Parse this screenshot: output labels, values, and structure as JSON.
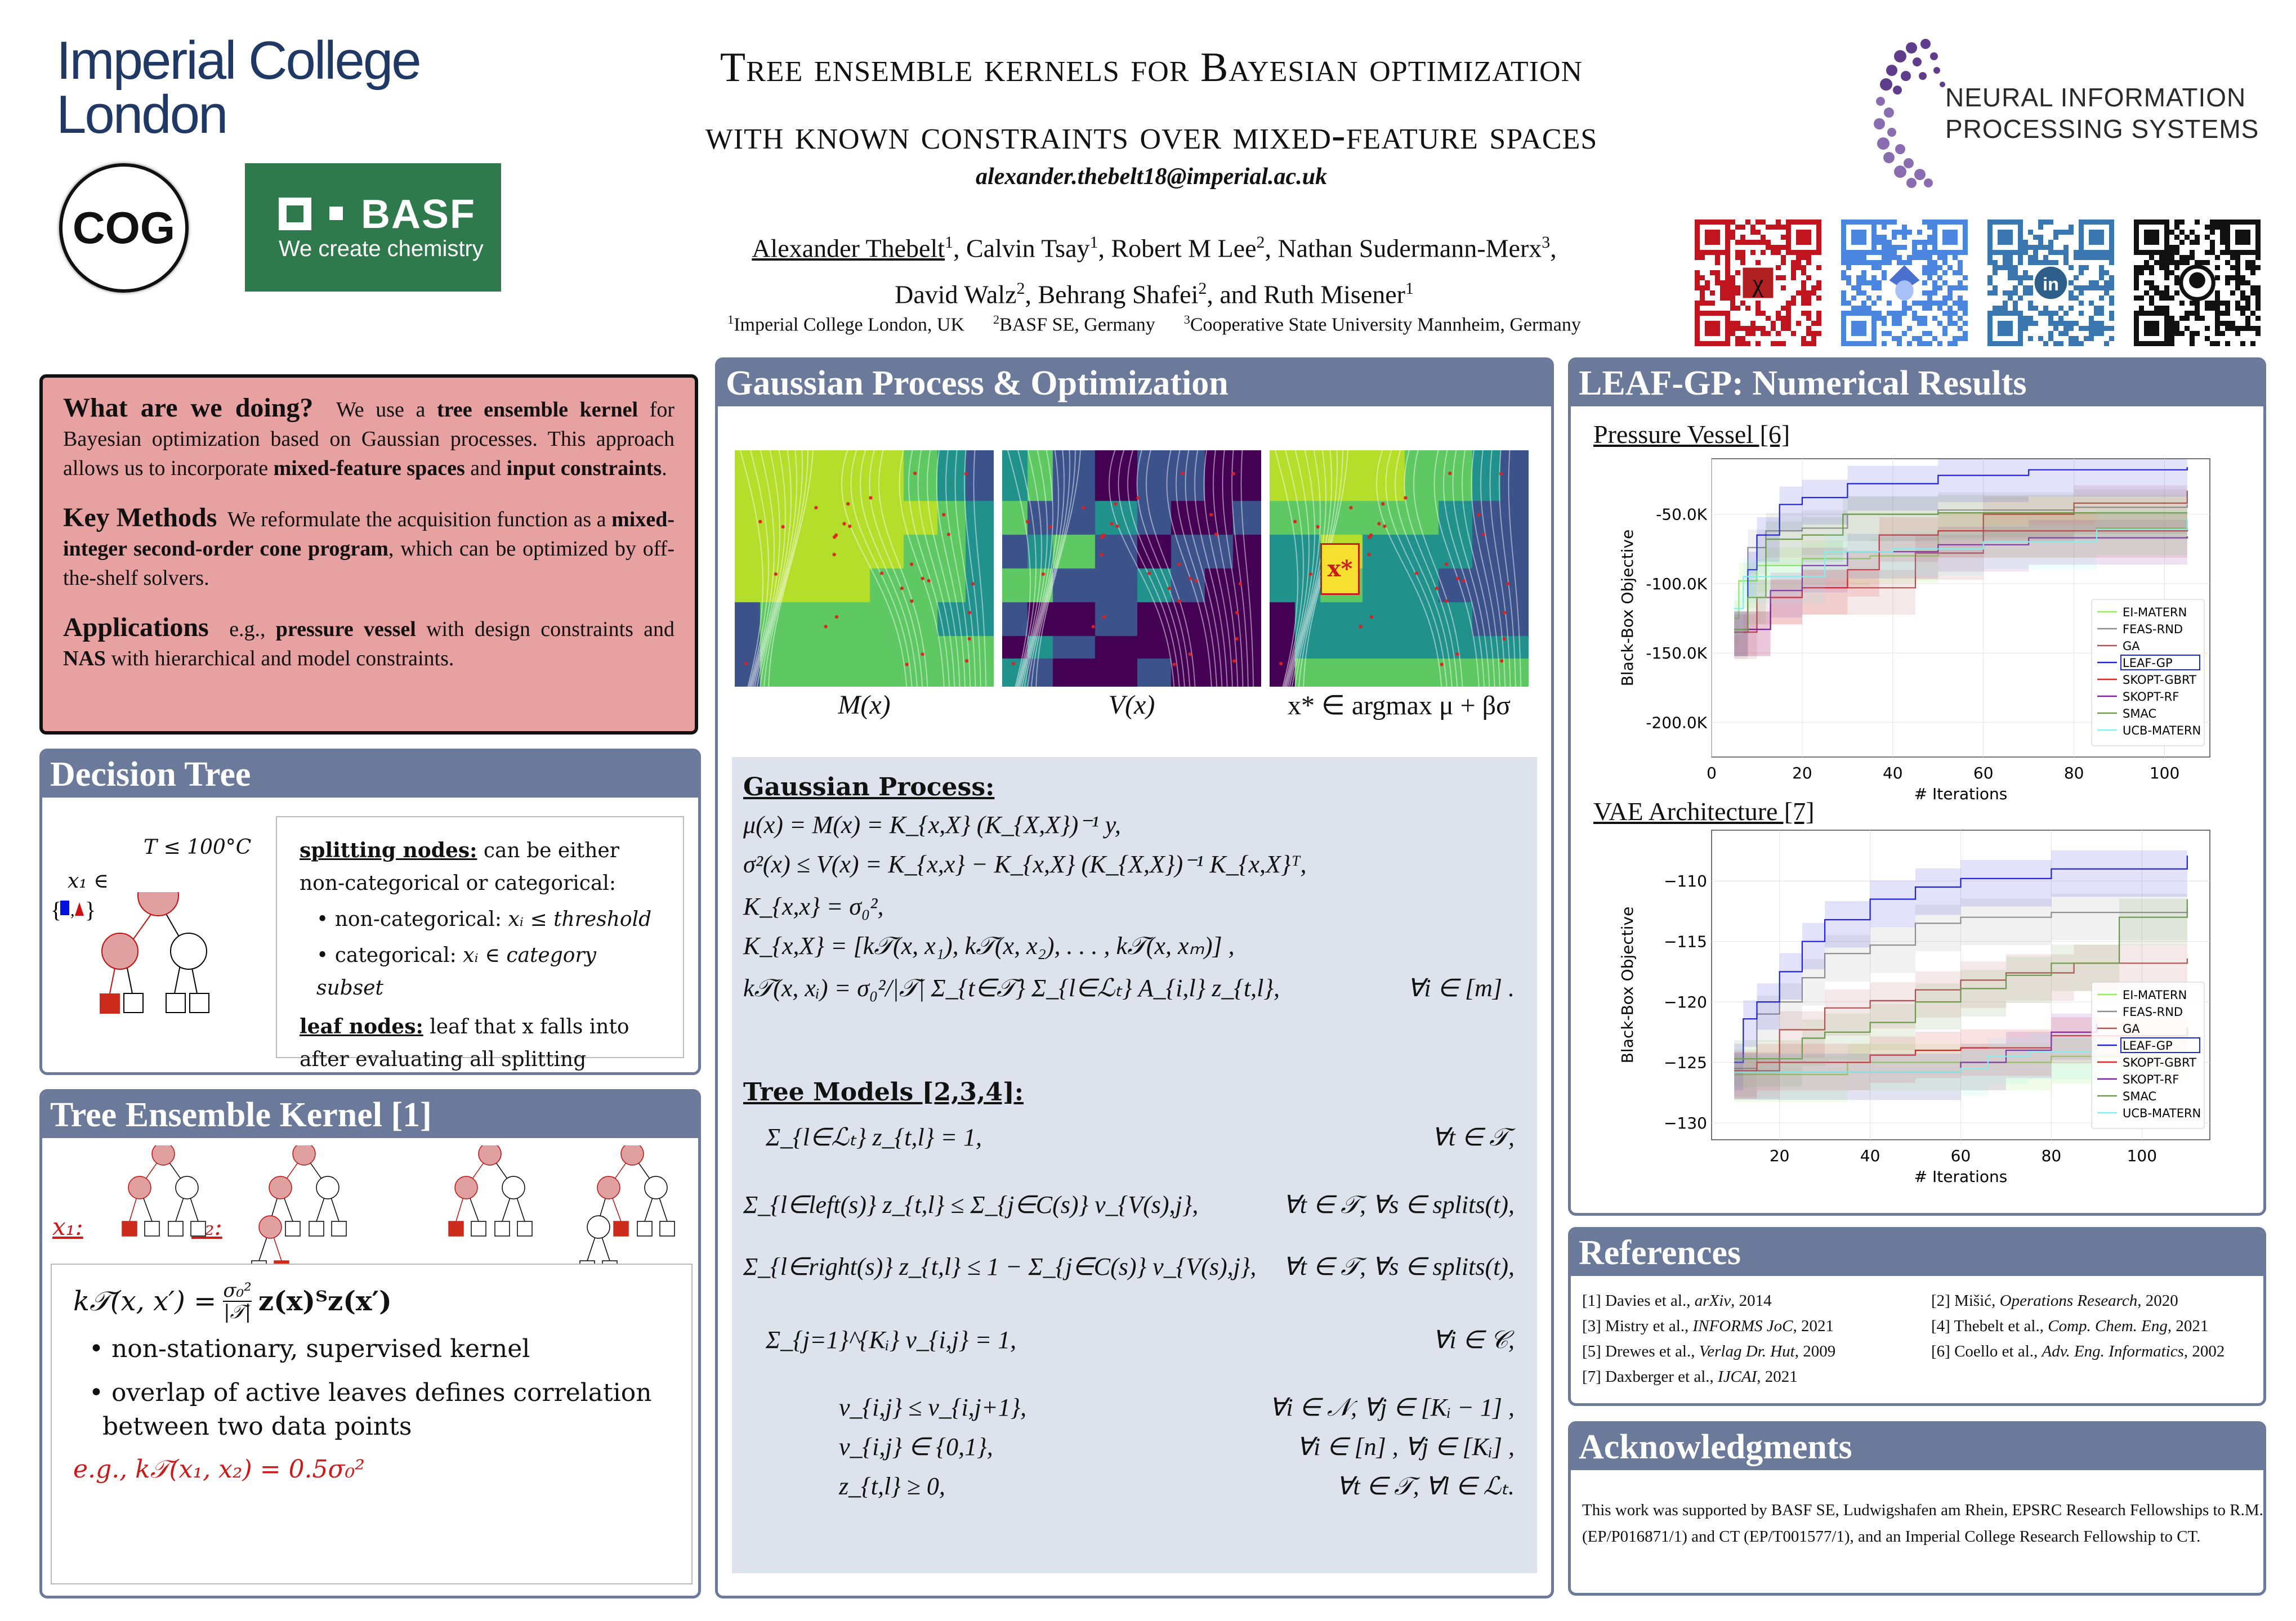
{
  "header": {
    "institution": [
      "Imperial College",
      "London"
    ],
    "cog_logo": "COG",
    "basf_logo": "BASF",
    "basf_tagline": "We create chemistry",
    "title_line1": "Tree ensemble kernels for Bayesian optimization",
    "title_line2": "with known constraints over mixed-feature spaces",
    "email": "alexander.thebelt18@imperial.ac.uk",
    "authors": [
      {
        "name": "Alexander Thebelt",
        "aff": "1"
      },
      {
        "name": "Calvin Tsay",
        "aff": "1"
      },
      {
        "name": "Robert M Lee",
        "aff": "2"
      },
      {
        "name": "Nathan Sudermann-Merx",
        "aff": "3"
      },
      {
        "name": "David Walz",
        "aff": "2"
      },
      {
        "name": "Behrang Shafei",
        "aff": "2"
      },
      {
        "name": "Ruth Misener",
        "aff": "1"
      }
    ],
    "author_connector": "and",
    "affiliations": [
      {
        "num": "1",
        "name": "Imperial College London, UK"
      },
      {
        "num": "2",
        "name": "BASF SE, Germany"
      },
      {
        "num": "3",
        "name": "Cooperative State University Mannheim, Germany"
      }
    ],
    "conference": [
      "NEURAL INFORMATION",
      "PROCESSING SYSTEMS"
    ],
    "qr_codes": [
      {
        "icon": "arxiv-icon",
        "glyph": "χ",
        "color": "#c0141e"
      },
      {
        "icon": "openreview-icon",
        "glyph": "",
        "color": "#4a86e0"
      },
      {
        "icon": "linkedin-icon",
        "glyph": "in",
        "color": "#3a77b0"
      },
      {
        "icon": "github-icon",
        "glyph": "",
        "color": "#111111"
      }
    ]
  },
  "intro": {
    "what_head": "What are we doing?",
    "what_1": "We use a",
    "what_b1": "tree ensemble kernel",
    "what_2": "for Bayesian optimization based on Gaussian processes. This approach allows us to incorporate",
    "what_b2": "mixed-feature spaces",
    "what_3": "and",
    "what_b3": "input constraints",
    "what_4": ".",
    "key_head": "Key Methods",
    "key_1": "We reformulate the acquisition function as a",
    "key_b1": "mixed-integer second-order cone program",
    "key_2": ", which can be optimized by off-the-shelf solvers.",
    "app_head": "Applications",
    "app_1": "e.g.,",
    "app_b1": "pressure vessel",
    "app_2": "with design constraints and",
    "app_b2": "NAS",
    "app_3": "with hierarchical and model constraints."
  },
  "decision_tree": {
    "heading": "Decision Tree",
    "root_label": "T ≤ 100°C",
    "cat_label": "x₁ ∈",
    "split_head": "splitting nodes:",
    "split_text": "can be either non-categorical or categorical:",
    "bullet1_a": "non-categorical:",
    "bullet1_b": "xᵢ ≤ threshold",
    "bullet2_a": "categorical:",
    "bullet2_b": "xᵢ ∈ category subset",
    "leaf_head": "leaf nodes:",
    "leaf_text": "leaf that x falls into after evaluating all splitting conditions"
  },
  "kernel": {
    "heading": "Tree Ensemble Kernel [1]",
    "x1_label": "x₁:",
    "x2_label": "x₂:",
    "formula_lhs": "k𝒯(x, x′) =",
    "formula_num": "σ₀²",
    "formula_den": "|𝒯|",
    "formula_rhs": "z(x)ᵀz(x′)",
    "bullet1": "non-stationary, supervised kernel",
    "bullet2": "overlap of active leaves defines correlation between two data points",
    "example": "e.g., k𝒯(x₁, x₂) = 0.5σ₀²"
  },
  "gp": {
    "heading": "Gaussian Process & Optimization",
    "plot_labels": [
      "M(x)",
      "V(x)",
      "x* ∈ argmax μ + βσ"
    ],
    "xstar": "x*",
    "gp_head": "Gaussian Process:",
    "eq1": "μ(x) = M(x) = K_{x,X} (K_{X,X})⁻¹ y,",
    "eq2": "σ²(x) ≤ V(x) = K_{x,x} − K_{x,X} (K_{X,X})⁻¹ K_{x,X}ᵀ,",
    "eq3": "K_{x,x} = σ₀²,",
    "eq4": "K_{x,X} = [k𝒯(x, x₁), k𝒯(x, x₂), . . . , k𝒯(x, xₘ)] ,",
    "eq5": "k𝒯(x, xᵢ) = σ₀²/|𝒯| Σ_{t∈𝒯} Σ_{l∈ℒₜ} A_{i,l} z_{t,l},",
    "eq5_cond": "∀i ∈ [m] .",
    "tm_head": "Tree Models [2,3,4]:",
    "tm": [
      {
        "lhs": "Σ_{l∈ℒₜ} z_{t,l} = 1,",
        "cond": "∀t ∈ 𝒯,"
      },
      {
        "lhs": "Σ_{l∈left(s)} z_{t,l} ≤ Σ_{j∈C(s)} ν_{V(s),j},",
        "cond": "∀t ∈ 𝒯, ∀s ∈ splits(t),"
      },
      {
        "lhs": "Σ_{l∈right(s)} z_{t,l} ≤ 1 − Σ_{j∈C(s)} ν_{V(s),j},",
        "cond": "∀t ∈ 𝒯, ∀s ∈ splits(t),"
      },
      {
        "lhs": "Σ_{j=1}^{Kᵢ} ν_{i,j} = 1,",
        "cond": "∀i ∈ 𝒞,"
      },
      {
        "lhs": "ν_{i,j} ≤ ν_{i,j+1},",
        "cond": "∀i ∈ 𝒩, ∀j ∈ [Kᵢ − 1] ,"
      },
      {
        "lhs": "ν_{i,j} ∈ {0,1},",
        "cond": "∀i ∈ [n] , ∀j ∈ [Kᵢ] ,"
      },
      {
        "lhs": "z_{t,l} ≥ 0,",
        "cond": "∀t ∈ 𝒯, ∀l ∈ ℒₜ."
      }
    ]
  },
  "results": {
    "heading": "LEAF-GP: Numerical Results"
  },
  "chart_data": [
    {
      "type": "line",
      "title": "Pressure Vessel [6]",
      "xlabel": "# Iterations",
      "ylabel": "Black-Box Objective",
      "xlim": [
        0,
        110
      ],
      "ylim": [
        -225000,
        -10000
      ],
      "xticks": [
        0,
        20,
        40,
        60,
        80,
        100
      ],
      "xtick_labels": [
        "0",
        "20",
        "40",
        "60",
        "80",
        "100"
      ],
      "yticks": [
        -200000,
        -150000,
        -100000,
        -50000
      ],
      "ytick_labels": [
        "-200.0K",
        "-150.0K",
        "-100.0K",
        "-50.0K"
      ],
      "grid": true,
      "legend": "bottom-right",
      "series": [
        {
          "name": "EI-MATERN",
          "color": "#90ee50",
          "x": [
            5,
            6,
            10,
            20,
            35,
            50,
            85,
            105
          ],
          "y": [
            -125000,
            -98000,
            -87000,
            -82000,
            -80000,
            -62000,
            -60000,
            -55000
          ]
        },
        {
          "name": "FEAS-RND",
          "color": "#909090",
          "x": [
            5,
            8,
            12,
            20,
            30,
            50,
            80,
            105
          ],
          "y": [
            -135000,
            -74000,
            -62000,
            -60000,
            -50000,
            -47000,
            -45000,
            -43000
          ]
        },
        {
          "name": "GA",
          "color": "#b05050",
          "x": [
            5,
            10,
            20,
            35,
            45,
            60,
            80,
            105
          ],
          "y": [
            -135000,
            -110000,
            -103000,
            -103000,
            -78000,
            -50000,
            -42000,
            -33000
          ]
        },
        {
          "name": "LEAF-GP",
          "color": "#2020e0",
          "x": [
            5,
            8,
            10,
            15,
            20,
            30,
            50,
            70,
            105
          ],
          "y": [
            -133000,
            -90000,
            -65000,
            -43000,
            -38000,
            -28000,
            -22000,
            -18000,
            -16000
          ]
        },
        {
          "name": "SKOPT-GBRT",
          "color": "#e02020",
          "x": [
            5,
            13,
            20,
            30,
            37,
            50,
            80,
            105
          ],
          "y": [
            -133000,
            -110000,
            -103000,
            -90000,
            -65000,
            -62000,
            -62000,
            -60000
          ]
        },
        {
          "name": "SKOPT-RF",
          "color": "#8020a0",
          "x": [
            5,
            13,
            20,
            30,
            50,
            70,
            105
          ],
          "y": [
            -133000,
            -105000,
            -87000,
            -77000,
            -72000,
            -67000,
            -66000
          ]
        },
        {
          "name": "SMAC",
          "color": "#6a9a4a",
          "x": [
            5,
            8,
            12,
            20,
            29,
            50,
            105
          ],
          "y": [
            -133000,
            -110000,
            -68000,
            -65000,
            -50000,
            -49000,
            -49000
          ]
        },
        {
          "name": "UCB-MATERN",
          "color": "#80f0f0",
          "x": [
            5,
            7,
            15,
            25,
            40,
            60,
            85,
            105
          ],
          "y": [
            -118000,
            -95000,
            -95000,
            -77000,
            -75000,
            -70000,
            -61000,
            -53000
          ]
        }
      ]
    },
    {
      "type": "line",
      "title": "VAE Architecture [7]",
      "xlabel": "# Iterations",
      "ylabel": "Black-Box Objective",
      "xlim": [
        5,
        115
      ],
      "ylim": [
        -131.4,
        -105.8
      ],
      "xticks": [
        20,
        40,
        60,
        80,
        100
      ],
      "xtick_labels": [
        "20",
        "40",
        "60",
        "80",
        "100"
      ],
      "yticks": [
        -130,
        -125,
        -120,
        -115,
        -110
      ],
      "ytick_labels": [
        "−130",
        "−125",
        "−120",
        "−115",
        "−110"
      ],
      "grid": true,
      "legend": "bottom-right",
      "series": [
        {
          "name": "EI-MATERN",
          "color": "#90ee50",
          "x": [
            10,
            35,
            60,
            80,
            110
          ],
          "y": [
            -126,
            -125,
            -125,
            -124.5,
            -124.5
          ]
        },
        {
          "name": "FEAS-RND",
          "color": "#909090",
          "x": [
            10,
            15,
            20,
            25,
            30,
            40,
            50,
            60,
            80,
            110
          ],
          "y": [
            -125.5,
            -121,
            -120,
            -118,
            -116,
            -115.3,
            -113.5,
            -113,
            -112.6,
            -112.2
          ]
        },
        {
          "name": "GA",
          "color": "#b05050",
          "x": [
            10,
            20,
            30,
            40,
            50,
            60,
            70,
            85,
            110
          ],
          "y": [
            -125.7,
            -122.3,
            -120.5,
            -119.9,
            -119,
            -118.2,
            -117.6,
            -116.8,
            -116.4
          ]
        },
        {
          "name": "LEAF-GP",
          "color": "#2020e0",
          "x": [
            10,
            12,
            15,
            20,
            25,
            30,
            40,
            50,
            60,
            80,
            110
          ],
          "y": [
            -125,
            -121.4,
            -120,
            -117.5,
            -115,
            -113.2,
            -111.5,
            -110.5,
            -109.8,
            -109,
            -107.9
          ]
        },
        {
          "name": "SKOPT-GBRT",
          "color": "#e02020",
          "x": [
            10,
            15,
            20,
            40,
            50,
            60,
            80,
            110
          ],
          "y": [
            -125.7,
            -125,
            -125,
            -124.4,
            -124,
            -123.8,
            -122.8,
            -122.1
          ]
        },
        {
          "name": "SKOPT-RF",
          "color": "#8020a0",
          "x": [
            10,
            50,
            60,
            70,
            80,
            90
          ],
          "y": [
            -125.8,
            -125.8,
            -125,
            -124,
            -122.5,
            -121.8
          ]
        },
        {
          "name": "SMAC",
          "color": "#6a9a4a",
          "x": [
            10,
            20,
            25,
            30,
            40,
            50,
            60,
            70,
            80,
            95,
            110
          ],
          "y": [
            -124.7,
            -124.7,
            -123,
            -122.5,
            -121.7,
            -120,
            -118.9,
            -117.8,
            -116.8,
            -113,
            -111.5
          ]
        },
        {
          "name": "UCB-MATERN",
          "color": "#80f0f0",
          "x": [
            10,
            60,
            66,
            75,
            90
          ],
          "y": [
            -125.8,
            -125.5,
            -124.5,
            -124.1,
            -123.9
          ]
        }
      ]
    }
  ],
  "references": {
    "heading": "References",
    "items": [
      {
        "num": "[1]",
        "authors": "Davies et al.,",
        "venue": "arXiv",
        "year": ", 2014"
      },
      {
        "num": "[2]",
        "authors": "Mišić,",
        "venue": "Operations Research",
        "year": ", 2020"
      },
      {
        "num": "[3]",
        "authors": "Mistry et al.,",
        "venue": "INFORMS JoC",
        "year": ", 2021"
      },
      {
        "num": "[4]",
        "authors": "Thebelt et al.,",
        "venue": "Comp.  Chem. Eng",
        "year": ", 2021"
      },
      {
        "num": "[5]",
        "authors": "Drewes et al.,",
        "venue": "Verlag Dr. Hut",
        "year": ", 2009"
      },
      {
        "num": "[6]",
        "authors": "Coello et al.,",
        "venue": "Adv. Eng. Informatics",
        "year": ", 2002"
      },
      {
        "num": "[7]",
        "authors": "Daxberger et al.,",
        "venue": "IJCAI",
        "year": ", 2021"
      }
    ]
  },
  "acknowledgments": {
    "heading": "Acknowledgments",
    "text": "This work was supported by BASF SE, Ludwigshafen am Rhein, EPSRC Research Fellowships to R.M. (EP/P016871/1) and CT (EP/T001577/1), and an Imperial College Research Fellowship to CT."
  },
  "colors": {
    "panel_header": "#6b7a9a",
    "pink_box": "#e8a1a1",
    "gp_box": "#dde2ec",
    "imperial_blue": "#1f3864",
    "basf_green": "#2e7a4d",
    "active_red": "#cc2a1a",
    "node_pink": "#e0a0a0"
  }
}
